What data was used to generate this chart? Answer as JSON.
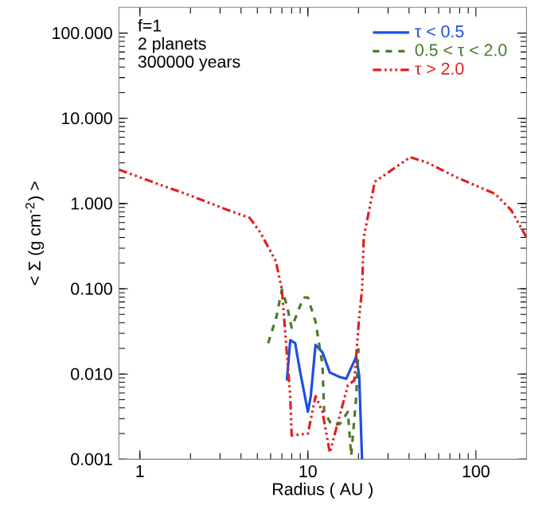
{
  "chart_data": {
    "type": "line",
    "xlabel": "Radius ( AU )",
    "ylabel": "< Σ (g cm$^{-2}$) >",
    "annotations": [
      "f=1",
      "2 planets",
      "300000 years"
    ],
    "log": "xy",
    "xlim": [
      0.75,
      200
    ],
    "ylim": [
      0.001,
      200
    ],
    "xticks": [
      1,
      10,
      100
    ],
    "yticks": [
      {
        "value": 0.001,
        "label": "0.001"
      },
      {
        "value": 0.01,
        "label": "0.010"
      },
      {
        "value": 0.1,
        "label": "0.100"
      },
      {
        "value": 1,
        "label": "1.000"
      },
      {
        "value": 10,
        "label": "10.000"
      },
      {
        "value": 100,
        "label": "100.000"
      }
    ],
    "grid": false,
    "legend": "top right",
    "series": [
      {
        "name": "τ < 0.5",
        "color": "#1f4fe0",
        "line_style": "solid",
        "x": [
          7.5,
          7.85,
          8.4,
          8.96,
          10,
          10.4,
          11.1,
          12.2,
          13.5,
          15.5,
          16.9,
          19.4,
          20.2,
          21
        ],
        "values": [
          0.0084,
          0.025,
          0.023,
          0.011,
          0.0036,
          0.0055,
          0.022,
          0.018,
          0.0104,
          0.0092,
          0.0088,
          0.016,
          0.0095,
          0.001
        ]
      },
      {
        "name": "0.5 < τ < 2.0",
        "color": "#4a7a2a",
        "line_style": "dashed",
        "x": [
          5.8,
          6.5,
          7.0,
          7.5,
          8.0,
          9.4,
          10,
          11.1,
          12.2,
          12.5,
          13.9,
          15.5,
          17.3,
          18.1,
          19.4,
          20
        ],
        "values": [
          0.023,
          0.047,
          0.098,
          0.064,
          0.035,
          0.079,
          0.079,
          0.041,
          0.013,
          0.0036,
          0.0025,
          0.0026,
          0.0036,
          0.0011,
          0.0055,
          0.02
        ]
      },
      {
        "name": "τ > 2.0",
        "color": "#e02020",
        "line_style": "dashdot",
        "x": [
          0.75,
          1.3,
          2.0,
          3.5,
          4.5,
          5.2,
          6.45,
          7.0,
          7.85,
          8.0,
          10,
          11.1,
          12.2,
          13.5,
          17.3,
          18.9,
          20.2,
          21,
          21.5,
          25,
          32.7,
          40.6,
          50.6,
          78,
          130,
          162,
          200
        ],
        "values": [
          2.5,
          1.68,
          1.24,
          0.81,
          0.68,
          0.46,
          0.21,
          0.098,
          0.0055,
          0.0019,
          0.002,
          0.0055,
          0.0036,
          0.0012,
          0.0074,
          0.0084,
          0.047,
          0.098,
          0.4,
          1.8,
          2.6,
          3.5,
          3.06,
          2.0,
          1.3,
          0.84,
          0.4
        ]
      }
    ]
  }
}
